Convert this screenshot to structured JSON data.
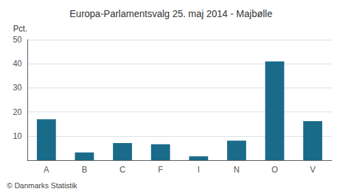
{
  "chart_data": {
    "type": "bar",
    "title": "Europa-Parlamentsvalg 25. maj 2014 - Majbølle",
    "ylabel": "Pct.",
    "annotations": [
      "© Danmarks Statistik"
    ],
    "categories": [
      "A",
      "B",
      "C",
      "F",
      "I",
      "N",
      "O",
      "V"
    ],
    "values": [
      17.0,
      3.2,
      7.1,
      6.6,
      1.6,
      8.1,
      41.0,
      16.2
    ],
    "color": "#1a6b8a",
    "ylim": [
      0,
      50
    ],
    "yticks": [
      10,
      20,
      30,
      40,
      50
    ],
    "grid": true
  }
}
